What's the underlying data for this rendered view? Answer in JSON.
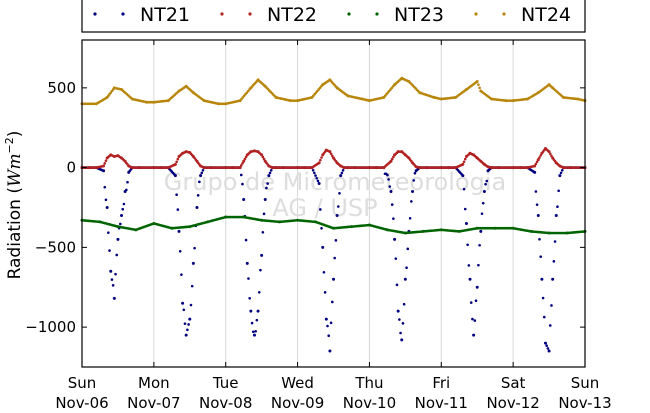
{
  "chart_data": {
    "type": "scatter",
    "title": "",
    "ylabel": "Radiation (W m^-2)",
    "ylabel_parts": {
      "text": "Radiation (",
      "symbol": "Wm",
      "exponent": "−2",
      "close": ")"
    },
    "xlabel": "",
    "ylim": [
      -1250,
      800
    ],
    "xlim": [
      0,
      7
    ],
    "grid": true,
    "legend_position": "top",
    "x_unit": "days since Sun Nov-06",
    "x_tick_labels": [
      {
        "day": "Sun",
        "date": "Nov-06"
      },
      {
        "day": "Mon",
        "date": "Nov-07"
      },
      {
        "day": "Tue",
        "date": "Nov-08"
      },
      {
        "day": "Wed",
        "date": "Nov-09"
      },
      {
        "day": "Thu",
        "date": "Nov-10"
      },
      {
        "day": "Fri",
        "date": "Nov-11"
      },
      {
        "day": "Sat",
        "date": "Nov-12"
      },
      {
        "day": "Sun",
        "date": "Nov-13"
      }
    ],
    "y_ticks": [
      500,
      0,
      -500,
      -1000
    ],
    "y_tick_labels": [
      "500",
      "0",
      "−500",
      "−1000"
    ],
    "watermark": [
      "Grupo de Micrometeorologia",
      "AG / USP"
    ],
    "series": [
      {
        "name": "NT21",
        "color": "#00007f",
        "x": [
          0.0,
          0.1,
          0.2,
          0.3,
          0.35,
          0.4,
          0.45,
          0.5,
          0.55,
          0.6,
          0.65,
          0.7,
          0.8,
          1.0,
          1.1,
          1.2,
          1.3,
          1.35,
          1.4,
          1.45,
          1.5,
          1.55,
          1.6,
          1.65,
          1.7,
          1.8,
          2.0,
          2.1,
          2.2,
          2.25,
          2.3,
          2.35,
          2.4,
          2.45,
          2.5,
          2.55,
          2.6,
          2.65,
          2.7,
          2.8,
          3.0,
          3.1,
          3.2,
          3.3,
          3.35,
          3.4,
          3.45,
          3.5,
          3.55,
          3.6,
          3.65,
          3.7,
          3.8,
          4.0,
          4.1,
          4.2,
          4.3,
          4.35,
          4.4,
          4.45,
          4.5,
          4.55,
          4.6,
          4.65,
          4.7,
          4.8,
          5.0,
          5.1,
          5.2,
          5.3,
          5.35,
          5.4,
          5.45,
          5.5,
          5.55,
          5.6,
          5.65,
          5.7,
          5.8,
          6.0,
          6.1,
          6.2,
          6.3,
          6.35,
          6.4,
          6.45,
          6.5,
          6.55,
          6.6,
          6.65,
          6.7,
          6.8,
          7.0
        ],
        "y": [
          0,
          0,
          0,
          -20,
          -250,
          -650,
          -820,
          -450,
          -300,
          -150,
          -30,
          0,
          0,
          0,
          0,
          0,
          -50,
          -400,
          -850,
          -1050,
          -950,
          -600,
          -250,
          -50,
          0,
          0,
          0,
          0,
          0,
          -200,
          -600,
          -900,
          -1050,
          -900,
          -550,
          -200,
          -50,
          0,
          0,
          0,
          0,
          0,
          0,
          -100,
          -500,
          -950,
          -1150,
          -700,
          -300,
          -50,
          0,
          0,
          0,
          0,
          0,
          0,
          -150,
          -450,
          -900,
          -1080,
          -700,
          -400,
          -150,
          -20,
          0,
          0,
          0,
          0,
          0,
          -50,
          -350,
          -700,
          -1050,
          -750,
          -400,
          -150,
          -20,
          0,
          0,
          0,
          0,
          0,
          -30,
          -300,
          -700,
          -1100,
          -1150,
          -700,
          -300,
          -50,
          0,
          0,
          0
        ]
      },
      {
        "name": "NT22",
        "color": "#b22222",
        "x": [
          0.0,
          0.1,
          0.2,
          0.3,
          0.35,
          0.4,
          0.45,
          0.5,
          0.55,
          0.6,
          0.65,
          0.7,
          0.8,
          1.0,
          1.1,
          1.2,
          1.3,
          1.35,
          1.4,
          1.45,
          1.5,
          1.55,
          1.6,
          1.65,
          1.7,
          1.8,
          2.0,
          2.1,
          2.2,
          2.25,
          2.3,
          2.35,
          2.4,
          2.45,
          2.5,
          2.55,
          2.6,
          2.65,
          2.7,
          2.8,
          3.0,
          3.1,
          3.2,
          3.3,
          3.35,
          3.4,
          3.45,
          3.5,
          3.55,
          3.6,
          3.65,
          3.7,
          3.8,
          4.0,
          4.1,
          4.2,
          4.3,
          4.35,
          4.4,
          4.45,
          4.5,
          4.55,
          4.6,
          4.65,
          4.7,
          4.8,
          5.0,
          5.1,
          5.2,
          5.3,
          5.35,
          5.4,
          5.45,
          5.5,
          5.55,
          5.6,
          5.65,
          5.7,
          5.8,
          6.0,
          6.1,
          6.2,
          6.3,
          6.35,
          6.4,
          6.45,
          6.5,
          6.55,
          6.6,
          6.65,
          6.7,
          6.8,
          7.0
        ],
        "y": [
          0,
          0,
          0,
          10,
          60,
          80,
          70,
          75,
          60,
          40,
          10,
          0,
          0,
          0,
          0,
          0,
          20,
          70,
          90,
          100,
          95,
          70,
          40,
          10,
          0,
          0,
          0,
          0,
          0,
          40,
          80,
          100,
          105,
          100,
          80,
          40,
          10,
          0,
          0,
          0,
          0,
          0,
          0,
          30,
          80,
          110,
          100,
          60,
          30,
          10,
          0,
          0,
          0,
          0,
          0,
          0,
          40,
          80,
          100,
          100,
          80,
          60,
          30,
          5,
          0,
          0,
          0,
          0,
          0,
          20,
          70,
          90,
          80,
          60,
          40,
          20,
          5,
          0,
          0,
          0,
          0,
          0,
          10,
          50,
          90,
          120,
          100,
          60,
          30,
          10,
          0,
          0,
          0
        ]
      },
      {
        "name": "NT23",
        "color": "#006400",
        "x": [
          0.0,
          0.25,
          0.5,
          0.75,
          1.0,
          1.25,
          1.5,
          1.75,
          2.0,
          2.25,
          2.5,
          2.75,
          3.0,
          3.25,
          3.5,
          3.75,
          4.0,
          4.25,
          4.5,
          4.75,
          5.0,
          5.25,
          5.5,
          5.75,
          6.0,
          6.25,
          6.5,
          6.75,
          7.0
        ],
        "y": [
          -330,
          -340,
          -370,
          -390,
          -350,
          -380,
          -370,
          -340,
          -310,
          -310,
          -330,
          -340,
          -330,
          -340,
          -380,
          -370,
          -360,
          -390,
          -410,
          -400,
          -390,
          -400,
          -380,
          -380,
          -380,
          -400,
          -410,
          -410,
          -400
        ]
      },
      {
        "name": "NT24",
        "color": "#b8860b",
        "x": [
          0.0,
          0.2,
          0.35,
          0.45,
          0.55,
          0.7,
          0.9,
          1.0,
          1.2,
          1.35,
          1.45,
          1.55,
          1.7,
          1.9,
          2.0,
          2.2,
          2.35,
          2.45,
          2.55,
          2.7,
          2.9,
          3.0,
          3.2,
          3.35,
          3.45,
          3.55,
          3.7,
          3.9,
          4.0,
          4.2,
          4.35,
          4.45,
          4.55,
          4.7,
          4.9,
          5.0,
          5.2,
          5.35,
          5.5,
          5.55,
          5.7,
          5.9,
          6.0,
          6.2,
          6.35,
          6.5,
          6.55,
          6.7,
          6.9,
          7.0
        ],
        "y": [
          400,
          400,
          440,
          500,
          490,
          430,
          410,
          410,
          420,
          480,
          510,
          470,
          420,
          400,
          400,
          420,
          500,
          550,
          510,
          440,
          420,
          420,
          440,
          520,
          550,
          500,
          450,
          430,
          420,
          440,
          520,
          560,
          540,
          470,
          440,
          430,
          440,
          490,
          540,
          480,
          430,
          420,
          420,
          430,
          470,
          520,
          500,
          440,
          430,
          420
        ]
      }
    ]
  }
}
